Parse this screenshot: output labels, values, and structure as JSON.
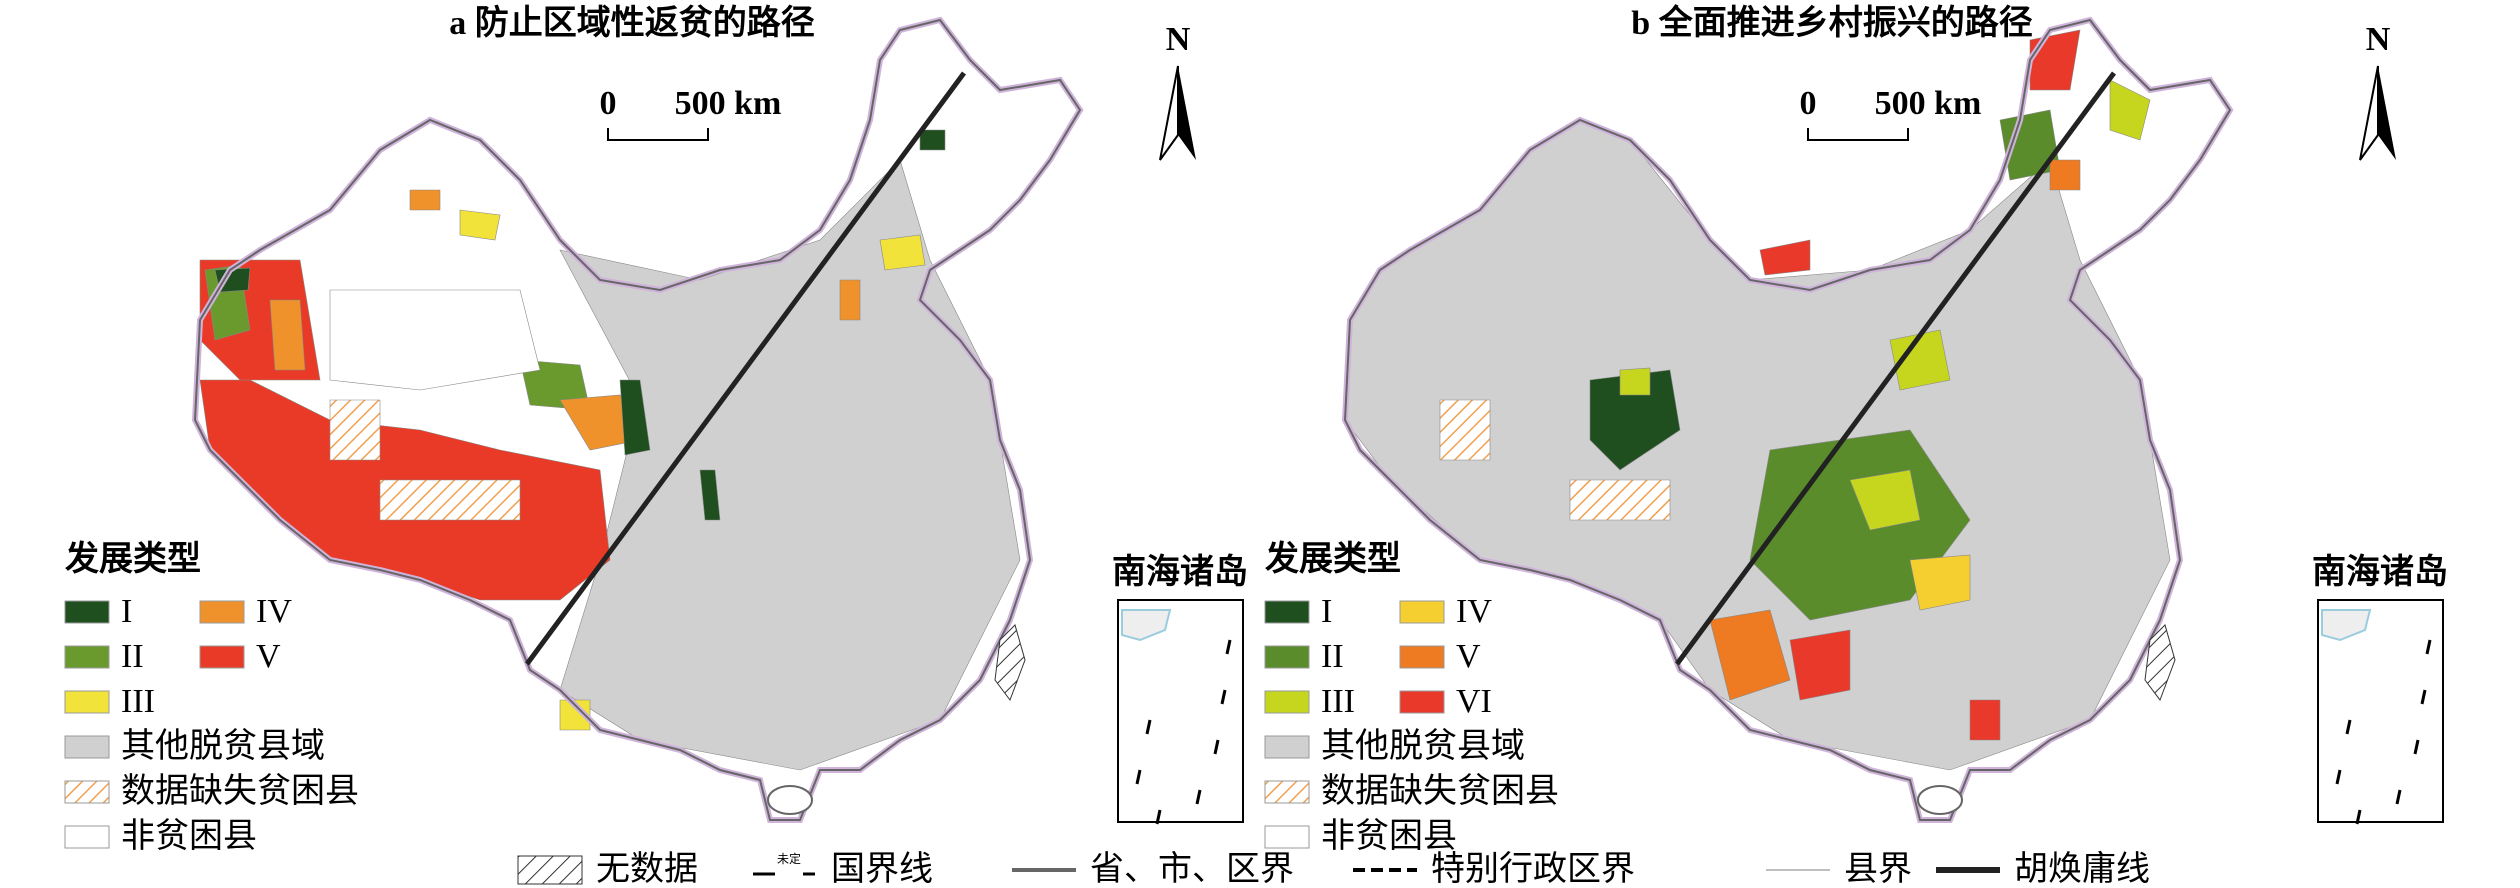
{
  "panels": [
    {
      "title": "a 防止区域性返贫的路径",
      "scale_bar": {
        "start": "0",
        "end": "500 km"
      },
      "north": "N",
      "inset_title": "南海诸岛",
      "legend": {
        "title": "发展类型",
        "items": [
          {
            "label": "I",
            "color": "#1f4e1f"
          },
          {
            "label": "II",
            "color": "#6a9a2e"
          },
          {
            "label": "III",
            "color": "#f2e33a"
          },
          {
            "label": "IV",
            "color": "#f0922b"
          },
          {
            "label": "V",
            "color": "#e83a26"
          }
        ],
        "extra": [
          {
            "label": "其他脱贫县域",
            "color": "#d0d0d0"
          },
          {
            "label": "数据缺失贫困县",
            "color": "hatch"
          },
          {
            "label": "非贫困县",
            "color": "#ffffff"
          }
        ]
      }
    },
    {
      "title": "b 全面推进乡村振兴的路径",
      "scale_bar": {
        "start": "0",
        "end": "500 km"
      },
      "north": "N",
      "inset_title": "南海诸岛",
      "legend": {
        "title": "发展类型",
        "items": [
          {
            "label": "I",
            "color": "#1f4e1f"
          },
          {
            "label": "II",
            "color": "#5a8c2c"
          },
          {
            "label": "III",
            "color": "#c6d61e"
          },
          {
            "label": "IV",
            "color": "#f5cf30"
          },
          {
            "label": "V",
            "color": "#ee7a22"
          },
          {
            "label": "VI",
            "color": "#e8392a"
          }
        ],
        "extra": [
          {
            "label": "其他脱贫县域",
            "color": "#d0d0d0"
          },
          {
            "label": "数据缺失贫困县",
            "color": "hatch"
          },
          {
            "label": "非贫困县",
            "color": "#ffffff"
          }
        ]
      }
    }
  ],
  "bottom_legend": [
    {
      "label": "无数据"
    },
    {
      "label": "国界线",
      "symbol_text": "未定"
    },
    {
      "label": "省、市、区界"
    },
    {
      "label": "特别行政区界"
    },
    {
      "label": "县界"
    },
    {
      "label": "胡焕庸线"
    }
  ]
}
